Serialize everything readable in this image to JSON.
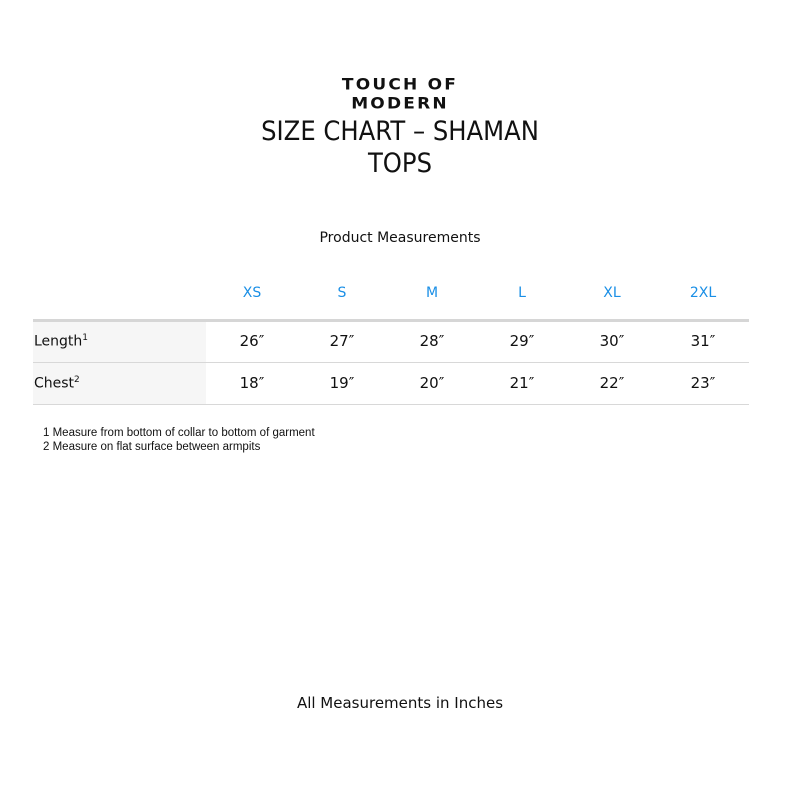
{
  "brand": "TOUCH OF MODERN",
  "title_line1": "SIZE CHART – SHAMAN",
  "title_line2": "TOPS",
  "table_title": "Product Measurements",
  "accent_color": "#1a8fe6",
  "sizes": [
    "XS",
    "S",
    "M",
    "L",
    "XL",
    "2XL"
  ],
  "rows": [
    {
      "label": "Length",
      "note_ref": "1",
      "values": [
        "26″",
        "27″",
        "28″",
        "29″",
        "30″",
        "31″"
      ]
    },
    {
      "label": "Chest",
      "note_ref": "2",
      "values": [
        "18″",
        "19″",
        "20″",
        "21″",
        "22″",
        "23″"
      ]
    }
  ],
  "notes": [
    "1 Measure from bottom of collar to bottom of garment",
    "2 Measure on flat surface between armpits"
  ],
  "footer": "All Measurements in Inches"
}
